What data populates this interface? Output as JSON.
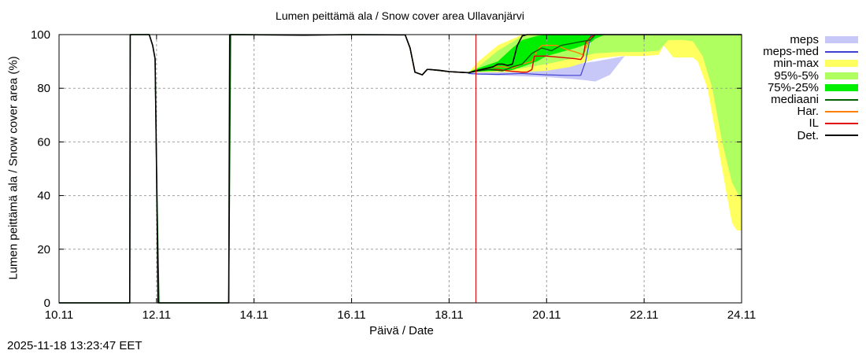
{
  "title": "Lumen peittämä ala / Snow cover area Ullavanjärvi",
  "timestamp": "2025-11-18 13:23:47 EET",
  "legend": [
    {
      "label": "meps",
      "kind": "band",
      "color": "#c8c8f8"
    },
    {
      "label": "meps-med",
      "kind": "line",
      "color": "#4040d0"
    },
    {
      "label": "min-max",
      "kind": "band",
      "color": "#ffff60"
    },
    {
      "label": "95%-5%",
      "kind": "band",
      "color": "#b0ff60"
    },
    {
      "label": "75%-25%",
      "kind": "band",
      "color": "#00ee00"
    },
    {
      "label": "mediaani",
      "kind": "line",
      "color": "#006000"
    },
    {
      "label": "Har.",
      "kind": "line",
      "color": "#ff8000"
    },
    {
      "label": "IL",
      "kind": "line",
      "color": "#e00000"
    },
    {
      "label": "Det.",
      "kind": "line",
      "color": "#000000"
    }
  ],
  "chart_data": {
    "type": "line",
    "title": "Lumen peittämä ala / Snow cover area Ullavanjärvi",
    "xlabel": "Päivä / Date",
    "ylabel": "Lumen peittämä ala / Snow cover area (%)",
    "x_tick_labels": [
      "10.11",
      "12.11",
      "14.11",
      "16.11",
      "18.11",
      "20.11",
      "22.11",
      "24.11"
    ],
    "x_tick_days": [
      0,
      2,
      4,
      6,
      8,
      10,
      12,
      14
    ],
    "y_ticks": [
      0,
      20,
      40,
      60,
      80,
      100
    ],
    "xlim_days": [
      0,
      14
    ],
    "ylim": [
      0,
      100
    ],
    "grid": true,
    "legend_position": "right-outside",
    "forecast_start_day": 8.55,
    "forecast_line_color": "#e00000",
    "x_unit": "days since 10.11",
    "series": [
      {
        "name": "Det.",
        "type": "line",
        "color": "#000000",
        "width": 1.6,
        "x": [
          0,
          1.45,
          1.46,
          1.85,
          1.92,
          1.97,
          2.0,
          2.03,
          3.48,
          3.5,
          3.55,
          5.0,
          5.05,
          6.0,
          7.0,
          7.1,
          7.2,
          7.3,
          7.45,
          7.55,
          7.6,
          7.8,
          8.0,
          8.4,
          8.55,
          8.9,
          9.0,
          9.1,
          9.2,
          9.3,
          9.4,
          9.5,
          9.6,
          14.0
        ],
        "y": [
          0,
          0,
          100,
          100,
          96,
          91,
          50,
          0,
          0,
          100,
          100,
          99.8,
          99.8,
          100,
          99.9,
          99.9,
          95,
          86,
          85,
          87,
          87,
          86.7,
          86.2,
          85.8,
          86.5,
          88,
          89,
          89,
          88.5,
          89,
          96,
          99.5,
          100,
          100
        ]
      },
      {
        "name": "mediaani",
        "type": "line",
        "color": "#006000",
        "width": 1.4,
        "x": [
          0,
          1.45,
          1.46,
          1.85,
          1.92,
          1.97,
          2.0,
          2.05,
          3.48,
          3.52,
          7.0,
          7.1,
          7.2,
          7.3,
          7.45,
          7.55,
          7.6,
          8.0,
          8.4,
          8.6,
          8.8,
          9.1,
          9.3,
          9.5,
          9.7,
          9.9,
          10.1,
          10.3,
          10.6,
          10.9,
          11.0
        ],
        "y": [
          0,
          0,
          100,
          100,
          96,
          91,
          50,
          0,
          0,
          100,
          99.9,
          99.9,
          95,
          86,
          85,
          87,
          87,
          86.2,
          85.8,
          86.5,
          87,
          86.5,
          88,
          89,
          93,
          95,
          94,
          96,
          97,
          98,
          100
        ]
      },
      {
        "name": "Har.",
        "type": "line",
        "color": "#ff8000",
        "width": 1.4,
        "x": [
          7.0,
          7.1,
          7.2,
          7.3,
          7.45,
          7.55,
          7.6,
          8.0,
          8.4,
          8.55,
          8.9,
          9.1,
          9.3,
          9.5,
          9.7,
          9.8,
          9.9,
          10.2,
          10.4,
          10.6,
          10.75,
          10.8,
          10.9,
          11.0
        ],
        "y": [
          99.9,
          99.9,
          95,
          86,
          85,
          87,
          87,
          86.2,
          85.8,
          86.5,
          88,
          88,
          87.5,
          89,
          90,
          94,
          96,
          96,
          94.5,
          93.5,
          92.5,
          95,
          99,
          100
        ]
      },
      {
        "name": "IL",
        "type": "line",
        "color": "#e00000",
        "width": 1.4,
        "x": [
          7.0,
          7.1,
          7.2,
          7.3,
          7.45,
          7.55,
          7.6,
          8.0,
          8.4,
          8.55,
          8.8,
          9.0,
          9.3,
          9.5,
          9.6,
          9.7,
          9.75,
          10.0,
          10.3,
          10.6,
          10.7,
          10.75,
          10.8,
          10.9,
          11.0
        ],
        "y": [
          99.9,
          99.9,
          95,
          86,
          85,
          87,
          87,
          86.2,
          85.8,
          86.5,
          87,
          87,
          86.3,
          86,
          86,
          87,
          92,
          92,
          91.5,
          91,
          90.7,
          92,
          97,
          99,
          100
        ]
      },
      {
        "name": "meps-med",
        "type": "line",
        "color": "#4040d0",
        "width": 1.2,
        "x": [
          8.4,
          8.6,
          9.0,
          9.5,
          10.0,
          10.4,
          10.7,
          10.8,
          10.9,
          11.0,
          14.0
        ],
        "y": [
          85.5,
          85.3,
          85.2,
          85.5,
          85,
          84.8,
          84.8,
          90,
          99.5,
          100,
          100
        ]
      }
    ],
    "bands": [
      {
        "name": "meps",
        "color": "#c8c8f8",
        "x": [
          8.4,
          9.0,
          9.5,
          10.0,
          10.5,
          10.8,
          11.0,
          11.3,
          11.6
        ],
        "lower": [
          85.3,
          84.8,
          84.5,
          84.2,
          83.5,
          83,
          82.5,
          85,
          92
        ],
        "upper": [
          86,
          86,
          86.5,
          87,
          88.5,
          89.5,
          90,
          91,
          92
        ]
      },
      {
        "name": "min-max",
        "color": "#ffff60",
        "x": [
          8.4,
          8.6,
          9.0,
          9.5,
          10.0,
          10.5,
          11.0,
          11.5,
          12.0,
          12.3,
          12.4,
          12.6,
          13.0,
          13.1,
          13.3,
          13.5,
          13.7,
          13.8,
          13.9,
          14.0
        ],
        "lower": [
          85.8,
          86,
          86,
          86,
          86.5,
          88,
          91,
          92,
          92,
          92.5,
          96,
          91.5,
          91.5,
          90,
          80,
          60,
          40,
          30,
          27,
          27
        ],
        "upper": [
          86,
          90,
          96,
          100,
          100,
          100,
          100,
          100,
          100,
          100,
          100,
          100,
          100,
          100,
          100,
          100,
          100,
          100,
          100,
          100
        ]
      },
      {
        "name": "95%-5%",
        "color": "#b0ff60",
        "x": [
          8.4,
          8.6,
          9.0,
          9.5,
          10.0,
          10.5,
          11.0,
          11.5,
          12.0,
          12.3,
          12.5,
          12.8,
          13.0,
          13.2,
          13.4,
          13.6,
          13.8,
          14.0
        ],
        "lower": [
          85.8,
          86.2,
          86.5,
          87.5,
          89,
          91,
          93,
          93.5,
          93.5,
          94,
          98,
          98,
          97.5,
          92,
          80,
          60,
          45,
          38
        ],
        "upper": [
          86,
          88,
          94,
          99.5,
          100,
          100,
          100,
          100,
          100,
          100,
          100,
          100,
          100,
          100,
          100,
          100,
          100,
          100
        ]
      },
      {
        "name": "75%-25%",
        "color": "#00ee00",
        "x": [
          8.4,
          8.6,
          9.0,
          9.3,
          9.5,
          9.8,
          10.0,
          10.3,
          10.6,
          10.9,
          11.0,
          11.2
        ],
        "lower": [
          85.8,
          86.2,
          86.5,
          86.8,
          88,
          90,
          92,
          93.5,
          95,
          97,
          98.5,
          100
        ],
        "upper": [
          86,
          87.5,
          90,
          95,
          98,
          99.5,
          100,
          100,
          100,
          100,
          100,
          100
        ]
      }
    ]
  }
}
